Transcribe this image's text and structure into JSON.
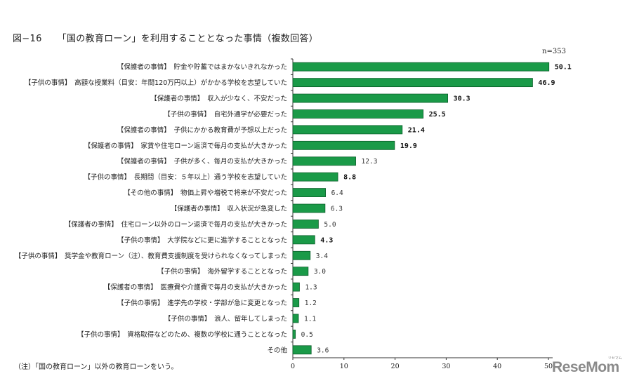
{
  "figure": {
    "number": "図−16",
    "title": "「国の教育ローン」を利用することとなった事情（複数回答）",
    "sample_size": "n=353",
    "footnote": "（注）「国の教育ローン」以外の教育ローンをいう。",
    "logo_text": "ReseMom",
    "logo_kana": "リセマム"
  },
  "colors": {
    "bar_fill": "#1a9a48",
    "bar_stroke": "#0b5e2a",
    "axis": "#333333"
  },
  "chart_data": {
    "type": "bar",
    "orientation": "horizontal",
    "categories": [
      "【保護者の事情】　貯金や貯蓄ではまかないきれなかった",
      "【子供の事情】　高額な授業料（目安：年間120万円以上）がかかる学校を志望していた",
      "【保護者の事情】　収入が少なく、不安だった",
      "【子供の事情】　自宅外通学が必要だった",
      "【保護者の事情】　子供にかかる教育費が予想以上だった",
      "【保護者の事情】　家賃や住宅ローン返済で毎月の支払が大きかった",
      "【保護者の事情】　子供が多く、毎月の支払が大きかった",
      "【子供の事情】　長期間（目安：５年以上）通う学校を志望していた",
      "【その他の事情】　物価上昇や増税で将来が不安だった",
      "【保護者の事情】　収入状況が急変した",
      "【保護者の事情】　住宅ローン以外のローン返済で毎月の支払が大きかった",
      "【子供の事情】　大学院などに更に進学することとなった",
      "【子供の事情】　奨学金や教育ローン（注）、教育費支援制度を受けられなくなってしまった",
      "【子供の事情】　海外留学することとなった",
      "【保護者の事情】　医療費や介護費で毎月の支払が大きかった",
      "【子供の事情】　進学先の学校・学部が急に変更となった",
      "【子供の事情】　浪人、留年してしまった",
      "【子供の事情】　資格取得などのため、複数の学校に通うこととなった",
      "その他"
    ],
    "values": [
      50.1,
      46.9,
      30.3,
      25.5,
      21.4,
      19.9,
      12.3,
      8.8,
      6.4,
      6.3,
      5.0,
      4.3,
      3.4,
      3.0,
      1.3,
      1.2,
      1.1,
      0.5,
      3.6
    ],
    "value_labels": [
      "50.1",
      "46.9",
      "30.3",
      "25.5",
      "21.4",
      "19.9",
      "12.3",
      "8.8",
      "6.4",
      "6.3",
      "5.0",
      "4.3",
      "3.4",
      "3.0",
      "1.3",
      "1.2",
      "1.1",
      "0.5",
      "3.6"
    ],
    "bold_labels": [
      true,
      true,
      true,
      true,
      true,
      true,
      false,
      true,
      false,
      false,
      false,
      true,
      false,
      false,
      false,
      false,
      false,
      false,
      false
    ],
    "xlim": [
      0,
      50
    ],
    "xticks": [
      0,
      10,
      20,
      30,
      40,
      50
    ],
    "xtick_labels": [
      "0",
      "10",
      "20",
      "30",
      "40",
      "50"
    ],
    "grid": false,
    "legend": "none"
  }
}
